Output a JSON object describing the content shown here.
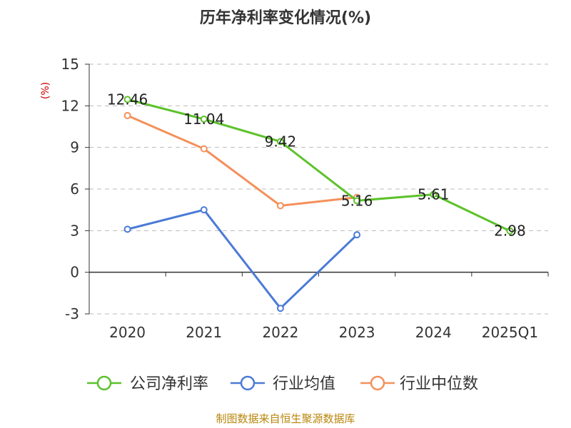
{
  "chart_data": {
    "type": "line",
    "title": "历年净利率变化情况(%)",
    "ylabel": "(%)",
    "categories": [
      "2020",
      "2021",
      "2022",
      "2023",
      "2024",
      "2025Q1"
    ],
    "ylim": [
      -3,
      15
    ],
    "yticks": [
      -3,
      0,
      3,
      6,
      9,
      12,
      15
    ],
    "grid": true,
    "legend_position": "bottom",
    "series": [
      {
        "name": "公司净利率",
        "color": "#5cc22a",
        "values": [
          12.46,
          11.04,
          9.42,
          5.16,
          5.61,
          2.98
        ],
        "labels": [
          "12.46",
          "11.04",
          "9.42",
          "5.16",
          "5.61",
          "2.98"
        ]
      },
      {
        "name": "行业均值",
        "color": "#4a7bd6",
        "values": [
          3.1,
          4.5,
          -2.6,
          2.7,
          null,
          null
        ]
      },
      {
        "name": "行业中位数",
        "color": "#f4905a",
        "values": [
          11.3,
          8.9,
          4.8,
          5.4,
          null,
          null
        ]
      }
    ]
  },
  "footer": {
    "source": "制图数据来自恒生聚源数据库"
  }
}
